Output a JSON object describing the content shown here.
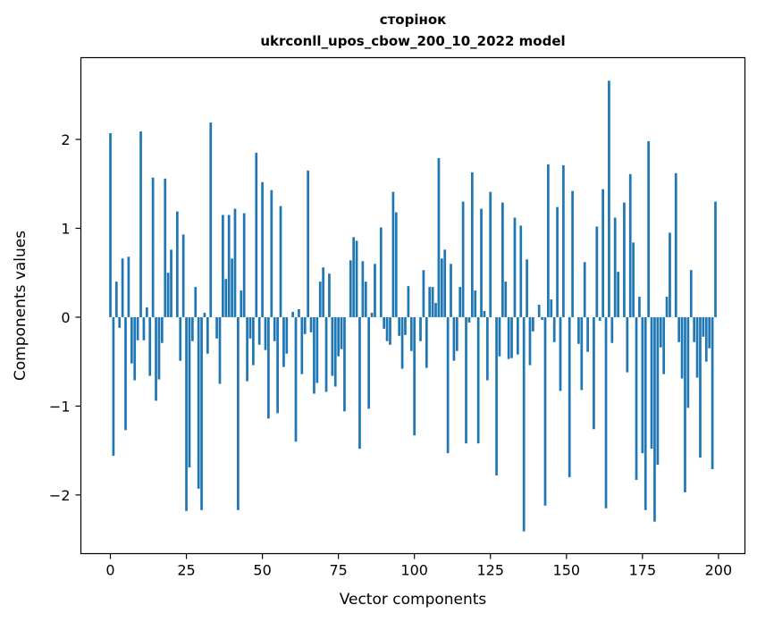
{
  "chart_data": {
    "type": "bar",
    "title": "сторінок",
    "subtitle": "ukrconll_upos_cbow_200_10_2022 model",
    "xlabel": "Vector components",
    "ylabel": "Components values",
    "xlim": [
      -9.7,
      208.7
    ],
    "ylim": [
      -2.66,
      2.92
    ],
    "xticks": [
      0,
      25,
      50,
      75,
      100,
      125,
      150,
      175,
      200
    ],
    "yticks": [
      -2,
      -1,
      0,
      1,
      2
    ],
    "ytick_labels": [
      "−2",
      "−1",
      "0",
      "1",
      "2"
    ],
    "bar_color": "#1f77b4",
    "grid": false,
    "values": [
      2.07,
      -1.56,
      0.4,
      -0.12,
      0.66,
      -1.27,
      0.68,
      -0.52,
      -0.71,
      -0.26,
      2.09,
      -0.26,
      0.11,
      -0.66,
      1.57,
      -0.94,
      -0.7,
      -0.29,
      1.56,
      0.5,
      0.76,
      0.0,
      1.19,
      -0.49,
      0.93,
      -2.18,
      -1.69,
      -0.27,
      0.34,
      -1.93,
      -2.17,
      0.05,
      -0.41,
      2.19,
      0.0,
      -0.24,
      -0.75,
      1.15,
      0.43,
      1.15,
      0.66,
      1.22,
      -2.17,
      0.3,
      1.17,
      -0.72,
      -0.24,
      -0.54,
      1.85,
      -0.31,
      1.52,
      -0.37,
      -1.14,
      1.43,
      -0.27,
      -1.08,
      1.25,
      -0.56,
      -0.41,
      0.0,
      0.06,
      -1.4,
      0.09,
      -0.64,
      -0.19,
      1.65,
      -0.17,
      -0.86,
      -0.74,
      0.4,
      0.56,
      -0.84,
      0.49,
      -0.66,
      -0.78,
      -0.44,
      -0.36,
      -1.06,
      0.0,
      0.64,
      0.9,
      0.86,
      -1.48,
      0.63,
      0.4,
      -1.03,
      0.05,
      0.6,
      0.0,
      1.01,
      -0.13,
      -0.27,
      -0.31,
      1.41,
      1.18,
      -0.21,
      -0.58,
      -0.2,
      0.35,
      -0.38,
      -1.33,
      0.0,
      -0.27,
      0.53,
      -0.57,
      0.34,
      0.34,
      0.16,
      1.79,
      0.66,
      0.76,
      -1.53,
      0.6,
      -0.49,
      -0.38,
      0.34,
      1.3,
      -1.42,
      -0.06,
      1.63,
      0.3,
      -1.42,
      1.22,
      0.07,
      -0.71,
      1.41,
      0.0,
      -1.78,
      -0.44,
      1.29,
      0.4,
      -0.47,
      -0.46,
      1.12,
      -0.42,
      1.03,
      -2.41,
      0.65,
      -0.54,
      -0.16,
      0.0,
      0.14,
      -0.03,
      -2.12,
      1.72,
      0.2,
      -0.28,
      1.24,
      -0.83,
      1.71,
      0.0,
      -1.8,
      1.42,
      0.0,
      -0.3,
      -0.82,
      0.62,
      -0.39,
      0.0,
      -1.26,
      1.02,
      -0.04,
      1.44,
      -2.15,
      2.66,
      -0.29,
      1.12,
      0.51,
      0.0,
      1.29,
      -0.62,
      1.61,
      0.84,
      -1.83,
      0.23,
      -1.53,
      -2.17,
      1.98,
      -1.48,
      -2.3,
      -1.66,
      -0.34,
      -0.64,
      0.23,
      0.95,
      0.0,
      1.62,
      -0.28,
      -0.69,
      -1.97,
      -1.02,
      0.53,
      -0.28,
      -0.68,
      -1.58,
      -0.22,
      -0.5,
      -0.35,
      -1.71,
      1.3
    ]
  }
}
